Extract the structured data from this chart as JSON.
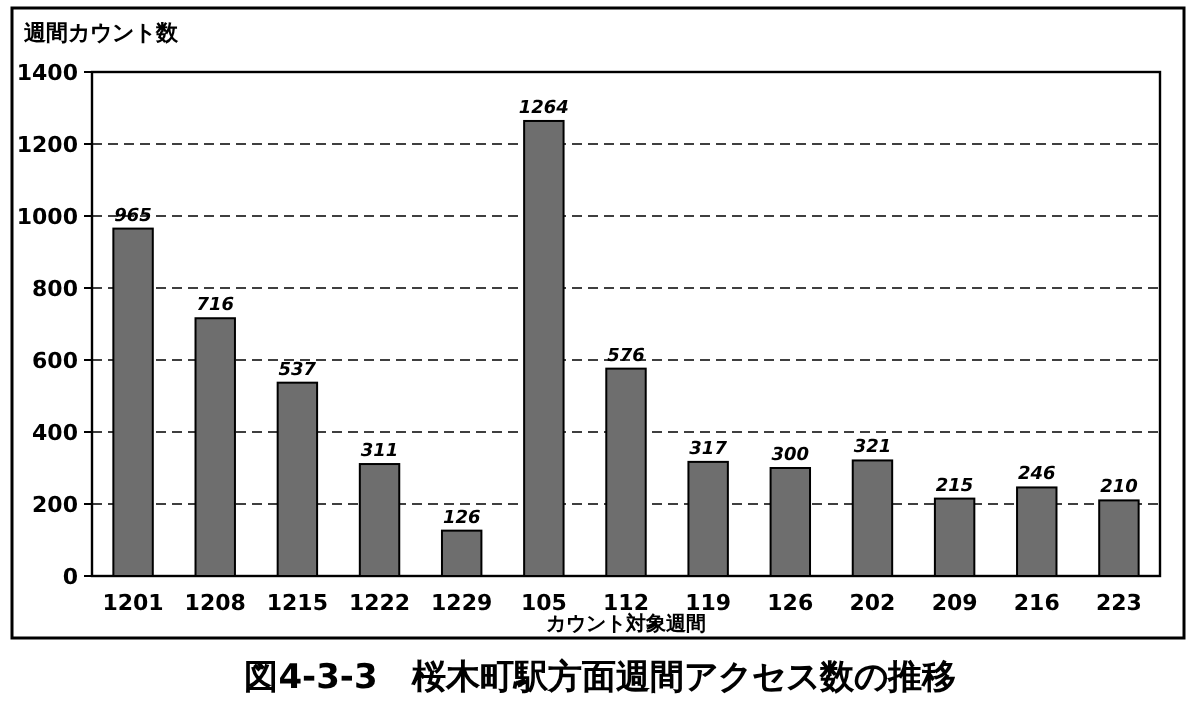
{
  "chart_data": {
    "type": "bar",
    "title": "図4-3-3　桜木町駅方面週間アクセス数の推移",
    "xlabel": "カウント対象週間",
    "ylabel": "週間カウント数",
    "categories": [
      "1201",
      "1208",
      "1215",
      "1222",
      "1229",
      "105",
      "112",
      "119",
      "126",
      "202",
      "209",
      "216",
      "223"
    ],
    "values": [
      965,
      716,
      537,
      311,
      126,
      1264,
      576,
      317,
      300,
      321,
      215,
      246,
      210
    ],
    "color": "#6e6e6e",
    "ylim": [
      0,
      1400
    ],
    "yticks": [
      0,
      200,
      400,
      600,
      800,
      1000,
      1200,
      1400
    ],
    "grid": "y",
    "data_labels": true
  }
}
